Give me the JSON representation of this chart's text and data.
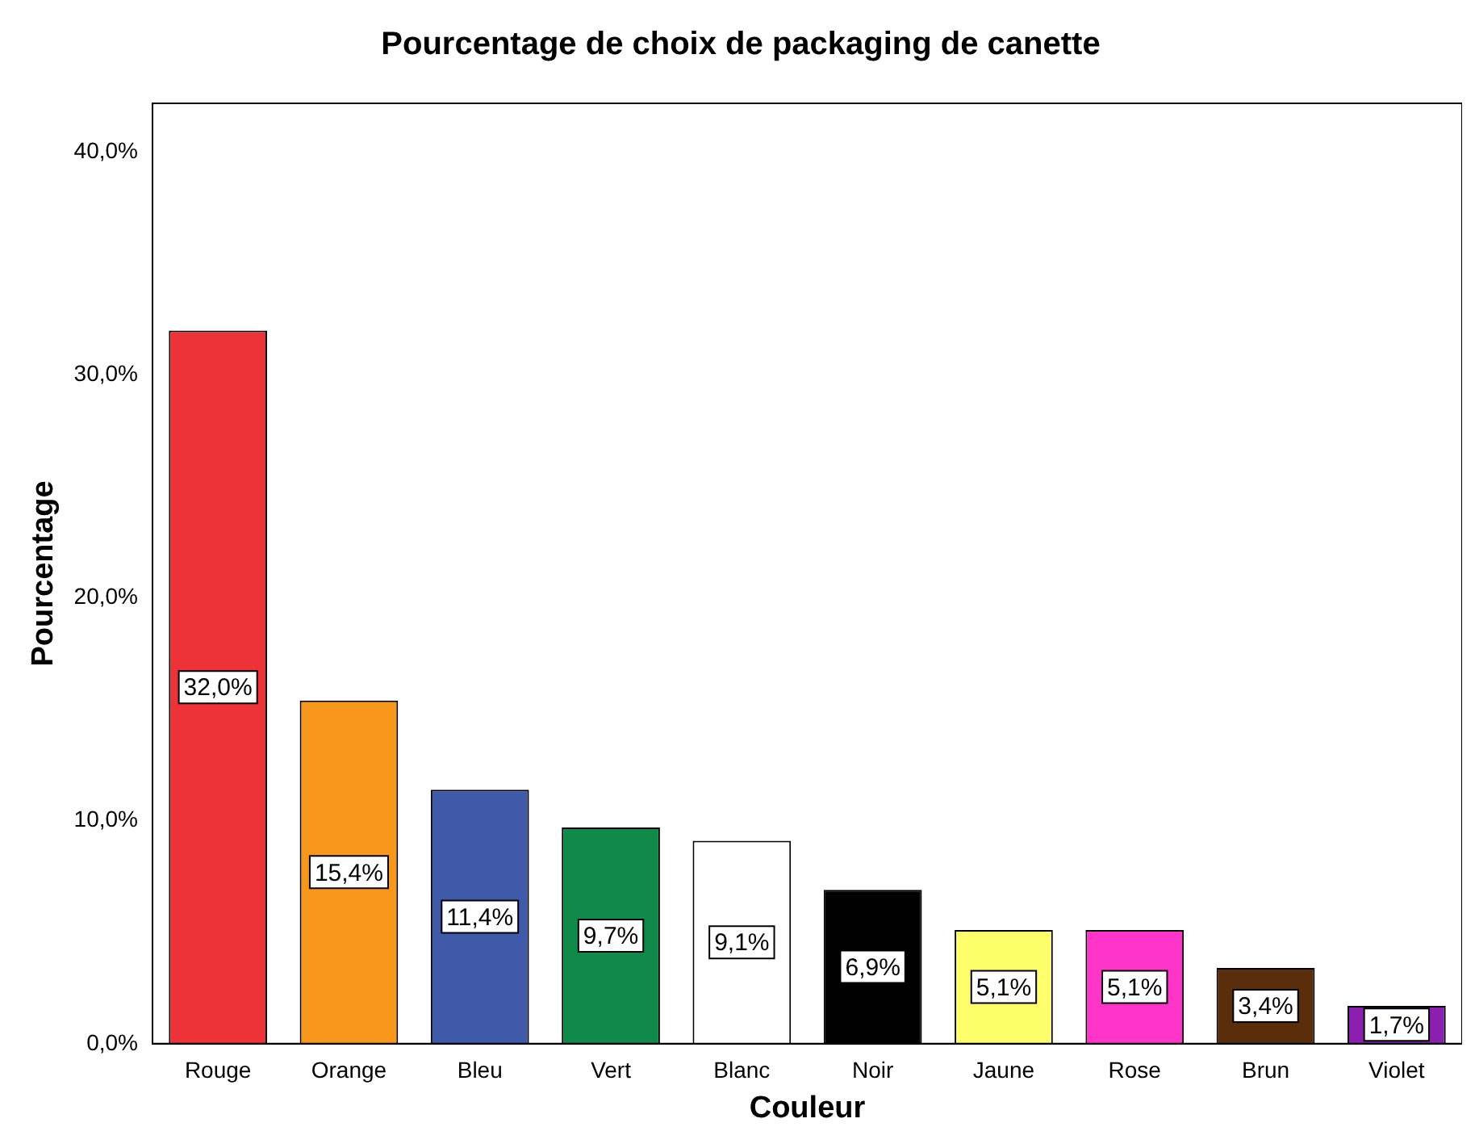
{
  "chart_data": {
    "type": "bar",
    "title": "Pourcentage de choix de packaging de canette",
    "xlabel": "Couleur",
    "ylabel": "Pourcentage",
    "categories": [
      "Rouge",
      "Orange",
      "Bleu",
      "Vert",
      "Blanc",
      "Noir",
      "Jaune",
      "Rose",
      "Brun",
      "Violet"
    ],
    "values": [
      32.0,
      15.4,
      11.4,
      9.7,
      9.1,
      6.9,
      5.1,
      5.1,
      3.4,
      1.7
    ],
    "colors": [
      "#ee3338",
      "#f7981d",
      "#3f5aa9",
      "#0f8a48",
      "#ffffff",
      "#000000",
      "#fefe6a",
      "#fe35c8",
      "#5a2e0a",
      "#8a1fb0"
    ],
    "value_labels": [
      "32,0%",
      "15,4%",
      "11,4%",
      "9,7%",
      "9,1%",
      "6,9%",
      "5,1%",
      "5,1%",
      "3,4%",
      "1,7%"
    ],
    "ylim": [
      0,
      42.2
    ],
    "yticks": [
      {
        "value": 0,
        "label": "0,0%"
      },
      {
        "value": 10,
        "label": "10,0%"
      },
      {
        "value": 20,
        "label": "20,0%"
      },
      {
        "value": 30,
        "label": "30,0%"
      },
      {
        "value": 40,
        "label": "40,0%"
      }
    ],
    "grid": false,
    "legend": false
  }
}
